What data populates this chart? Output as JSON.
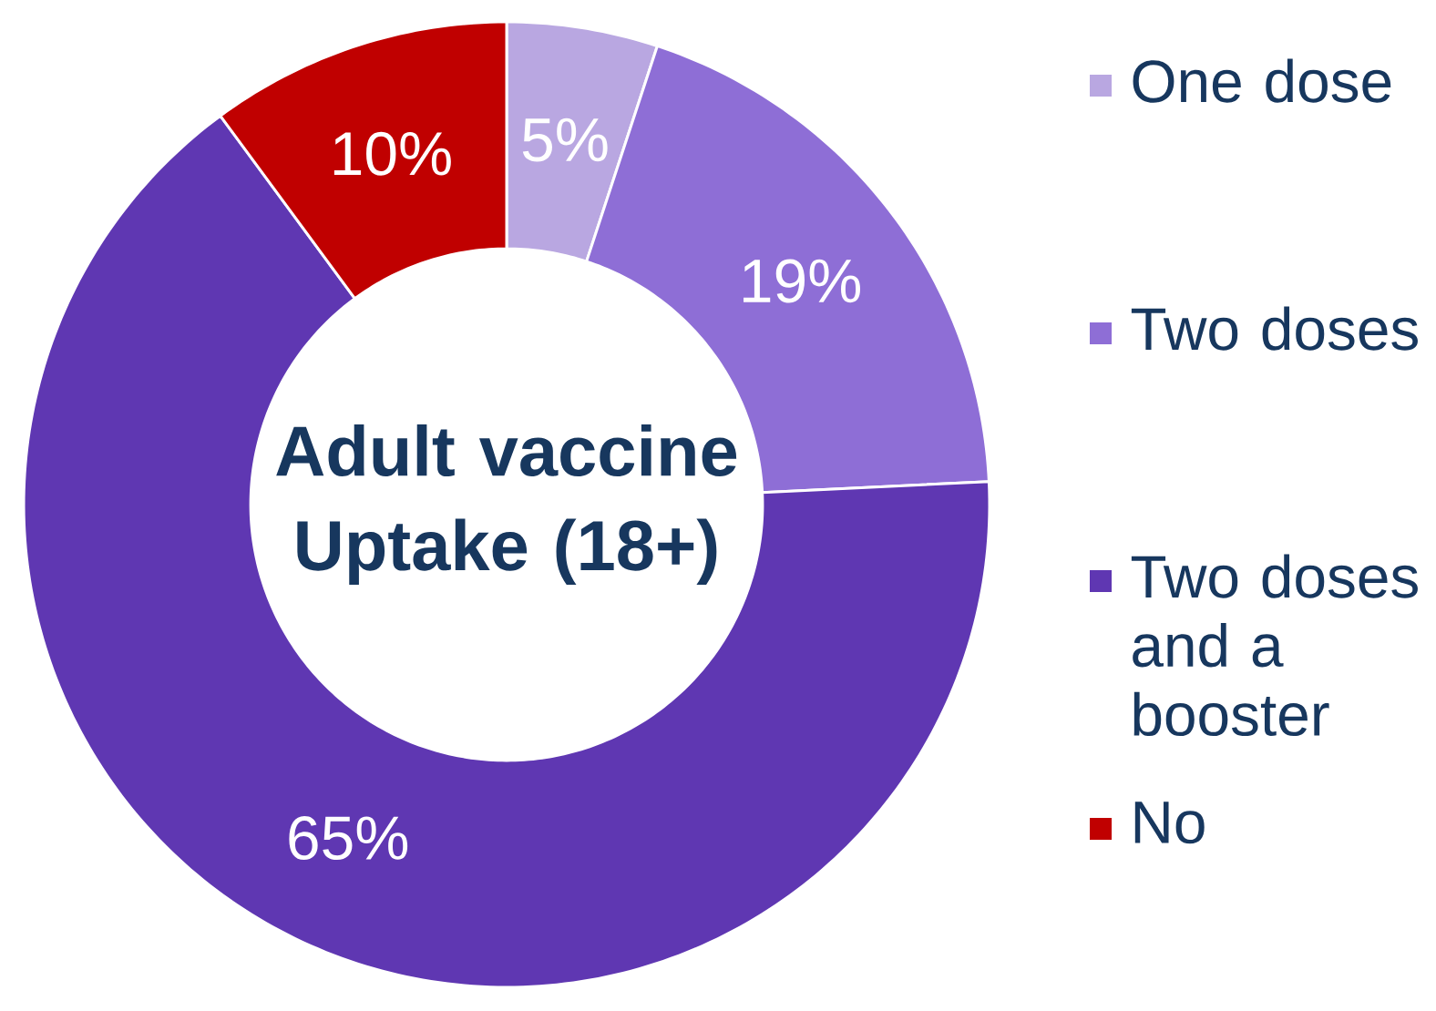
{
  "chart_data": {
    "type": "donut",
    "title": "Adult vaccine Uptake (18+)",
    "categories": [
      "One dose",
      "Two doses",
      "Two doses and a booster",
      "No"
    ],
    "values": [
      5,
      19,
      65,
      10
    ],
    "colors": [
      "#b9a7e1",
      "#8e6ed6",
      "#5f37b2",
      "#c00000"
    ],
    "value_labels": [
      "5%",
      "19%",
      "65%",
      "10%"
    ],
    "legend": "right"
  }
}
